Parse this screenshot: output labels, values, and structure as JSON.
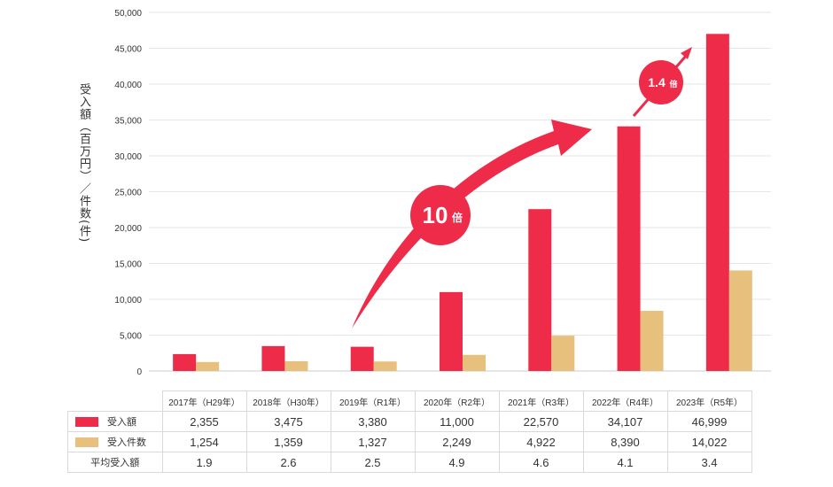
{
  "colors": {
    "received": "#ee2b48",
    "count": "#e8c07e",
    "grid": "#e6e6e6",
    "axis": "#cccccc"
  },
  "y_axis_label": "受入額（百万円）／件数(件)",
  "badges": {
    "ten_times": "10",
    "ten_times_unit": "倍",
    "one_four": "1.4",
    "one_four_unit": "倍"
  },
  "table": {
    "headers": [
      "2017年（H29年）",
      "2018年（H30年）",
      "2019年（R1年）",
      "2020年（R2年）",
      "2021年（R3年）",
      "2022年（R4年）",
      "2023年（R5年）"
    ],
    "rows": [
      {
        "name": "受入額",
        "values": [
          "2,355",
          "3,475",
          "3,380",
          "11,000",
          "22,570",
          "34,107",
          "46,999"
        ]
      },
      {
        "name": "受入件数",
        "values": [
          "1,254",
          "1,359",
          "1,327",
          "2,249",
          "4,922",
          "8,390",
          "14,022"
        ]
      },
      {
        "name": "平均受入額",
        "values": [
          "1.9",
          "2.6",
          "2.5",
          "4.9",
          "4.6",
          "4.1",
          "3.4"
        ]
      }
    ]
  },
  "chart_data": {
    "type": "bar",
    "categories": [
      "2017年（H29年）",
      "2018年（H30年）",
      "2019年（R1年）",
      "2020年（R2年）",
      "2021年（R3年）",
      "2022年（R4年）",
      "2023年（R5年）"
    ],
    "series": [
      {
        "name": "受入額",
        "values": [
          2355,
          3475,
          3380,
          11000,
          22570,
          34107,
          46999
        ]
      },
      {
        "name": "受入件数",
        "values": [
          1254,
          1359,
          1327,
          2249,
          4922,
          8390,
          14022
        ]
      }
    ],
    "ylabel": "受入額（百万円）／件数(件)",
    "ylim": [
      0,
      50000
    ],
    "yticks": [
      "0",
      "5,000",
      "10,000",
      "15,000",
      "20,000",
      "25,000",
      "30,000",
      "35,000",
      "40,000",
      "45,000",
      "50,000"
    ],
    "grid": true
  }
}
